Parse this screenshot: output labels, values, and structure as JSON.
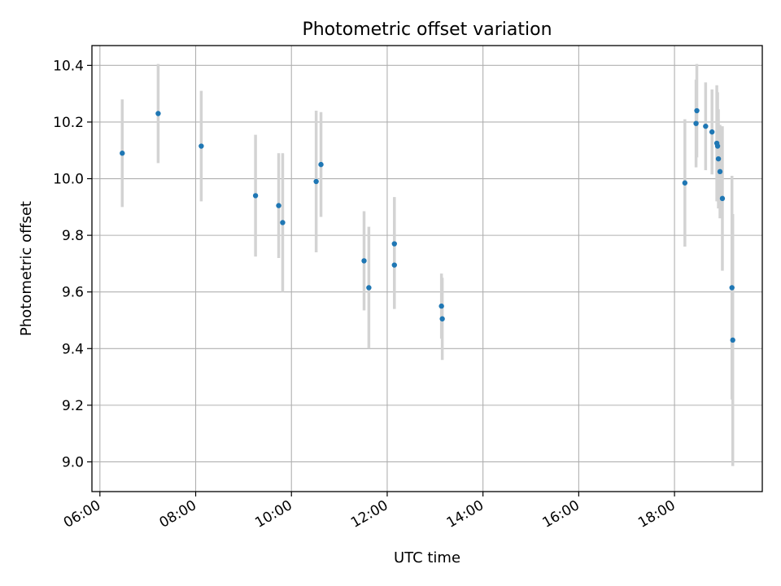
{
  "chart_data": {
    "type": "scatter",
    "title": "Photometric offset variation",
    "xlabel": "UTC time",
    "ylabel": "Photometric offset",
    "x_tick_labels": [
      "06:00",
      "08:00",
      "10:00",
      "12:00",
      "14:00",
      "16:00",
      "18:00"
    ],
    "x_tick_values": [
      "06:00",
      "08:00",
      "10:00",
      "12:00",
      "14:00",
      "16:00",
      "18:00"
    ],
    "y_tick_labels": [
      "9.0",
      "9.2",
      "9.4",
      "9.6",
      "9.8",
      "10.0",
      "10.2",
      "10.4"
    ],
    "y_tick_values": [
      9.0,
      9.2,
      9.4,
      9.6,
      9.8,
      10.0,
      10.2,
      10.4
    ],
    "xlim": [
      "05:50",
      "19:50"
    ],
    "ylim": [
      8.895,
      10.47
    ],
    "grid": true,
    "colors": {
      "points": "#1f77b4",
      "errorbars": "#d3d3d3",
      "grid": "#b0b0b0"
    },
    "points": [
      {
        "x": "06:28",
        "y": 10.09,
        "err": 0.19
      },
      {
        "x": "07:13",
        "y": 10.23,
        "err": 0.175
      },
      {
        "x": "08:07",
        "y": 10.115,
        "err": 0.195
      },
      {
        "x": "09:15",
        "y": 9.94,
        "err": 0.215
      },
      {
        "x": "09:44",
        "y": 9.905,
        "err": 0.185
      },
      {
        "x": "09:49",
        "y": 9.845,
        "err": 0.245
      },
      {
        "x": "10:31",
        "y": 9.99,
        "err": 0.25
      },
      {
        "x": "10:37",
        "y": 10.05,
        "err": 0.185
      },
      {
        "x": "11:31",
        "y": 9.71,
        "err": 0.175
      },
      {
        "x": "11:37",
        "y": 9.615,
        "err": 0.215
      },
      {
        "x": "12:09",
        "y": 9.77,
        "err": 0.165
      },
      {
        "x": "12:09",
        "y": 9.695,
        "err": 0.155
      },
      {
        "x": "13:08",
        "y": 9.55,
        "err": 0.115
      },
      {
        "x": "13:09",
        "y": 9.505,
        "err": 0.145
      },
      {
        "x": "18:13",
        "y": 9.985,
        "err": 0.225
      },
      {
        "x": "18:27",
        "y": 10.195,
        "err": 0.155
      },
      {
        "x": "18:28",
        "y": 10.24,
        "err": 0.165
      },
      {
        "x": "18:39",
        "y": 10.185,
        "err": 0.155
      },
      {
        "x": "18:47",
        "y": 10.165,
        "err": 0.15
      },
      {
        "x": "18:53",
        "y": 10.125,
        "err": 0.205
      },
      {
        "x": "18:54",
        "y": 10.115,
        "err": 0.19
      },
      {
        "x": "18:55",
        "y": 10.07,
        "err": 0.175
      },
      {
        "x": "18:57",
        "y": 10.025,
        "err": 0.165
      },
      {
        "x": "19:00",
        "y": 9.93,
        "err": 0.255
      },
      {
        "x": "19:12",
        "y": 9.615,
        "err": 0.395
      },
      {
        "x": "19:13",
        "y": 9.43,
        "err": 0.445
      }
    ]
  }
}
